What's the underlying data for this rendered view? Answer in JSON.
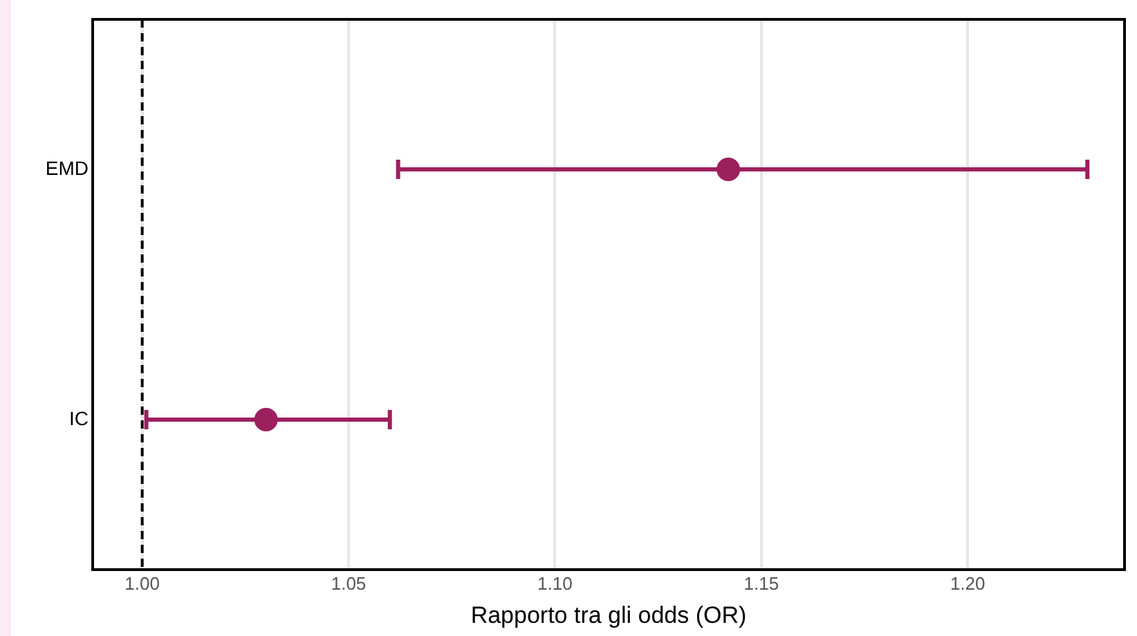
{
  "chart_data": {
    "type": "scatter",
    "orientation": "horizontal",
    "xlabel": "Rapporto tra gli odds (OR)",
    "categories": [
      "EMD",
      "IC"
    ],
    "series": [
      {
        "color": "#9c1f5e",
        "values": [
          1.142,
          1.03
        ],
        "errors": [
          [
            1.062,
            1.229
          ],
          [
            1.001,
            1.06
          ]
        ]
      }
    ],
    "xlim": [
      0.988,
      1.238
    ],
    "xticks": [
      {
        "value": 1,
        "label": "1.00"
      },
      {
        "value": 1.05,
        "label": "1.05"
      },
      {
        "value": 1.1,
        "label": "1.10"
      },
      {
        "value": 1.15,
        "label": "1.15"
      },
      {
        "value": 1.2,
        "label": "1.20"
      }
    ],
    "ref_lines": [
      {
        "axis": "x",
        "value": 1,
        "color": "#000000",
        "line_style": "dashed"
      }
    ],
    "grid": "x",
    "marker": "circle",
    "legend": false
  }
}
